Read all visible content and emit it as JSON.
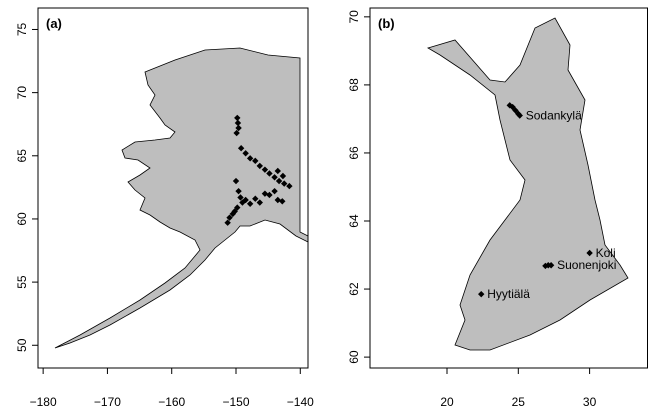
{
  "chart_data": [
    {
      "type": "scatter",
      "title": "(a)",
      "xlim": [
        -180.8,
        -138.8
      ],
      "ylim": [
        48.2,
        76.7
      ],
      "xticks": [
        {
          "value": -180,
          "label": "−180"
        },
        {
          "value": -170,
          "label": "−170"
        },
        {
          "value": -160,
          "label": "−160"
        },
        {
          "value": -150,
          "label": "−150"
        },
        {
          "value": -140,
          "label": "−140"
        }
      ],
      "yticks": [
        50,
        55,
        60,
        65,
        70,
        75
      ],
      "series": [
        {
          "color": "#000000",
          "x": [
            -149.8,
            -149.7,
            -149.6,
            -149.9,
            -149.2,
            -148.5,
            -147.8,
            -147,
            -146.3,
            -145.5,
            -144.8,
            -144,
            -143.3,
            -142.5,
            -141.7,
            -143.5,
            -142.7,
            -150,
            -149.6,
            -149.3,
            -149,
            -148.5,
            -147.8,
            -147,
            -146.3,
            -145.5,
            -144.8,
            -144,
            -143.5,
            -142.8,
            -149.8,
            -150.5,
            -151,
            -151.3,
            -150.2
          ],
          "values": [
            68.0,
            67.6,
            67.2,
            66.8,
            65.6,
            65.2,
            64.8,
            64.6,
            64.2,
            63.9,
            63.6,
            63.3,
            63,
            62.8,
            62.6,
            63.8,
            63.4,
            63,
            62.2,
            61.7,
            61.3,
            61.5,
            61.2,
            61.6,
            61.3,
            62,
            61.9,
            62.2,
            61.5,
            61.4,
            60.9,
            60.4,
            60.1,
            59.7,
            60.6
          ]
        }
      ]
    },
    {
      "type": "scatter",
      "title": "(b)",
      "xlim": [
        14.6,
        34.06
      ],
      "ylim": [
        59.68,
        70.26
      ],
      "xticks": [
        20,
        25,
        30
      ],
      "yticks": [
        60,
        62,
        64,
        66,
        68,
        70
      ],
      "series": [
        {
          "name": "Sodankylä",
          "color": "#000000",
          "x": [
            24.4,
            24.6,
            24.8,
            25.0,
            25.1
          ],
          "values": [
            67.4,
            67.35,
            67.25,
            67.15,
            67.1
          ]
        },
        {
          "name": "Koli",
          "color": "#000000",
          "x": [
            30.0
          ],
          "values": [
            63.06
          ]
        },
        {
          "name": "Suonenjoki",
          "color": "#000000",
          "x": [
            26.9,
            27.1,
            27.3
          ],
          "values": [
            62.68,
            62.7,
            62.7
          ]
        },
        {
          "name": "Hyytiälä",
          "color": "#000000",
          "x": [
            22.4
          ],
          "values": [
            61.85
          ]
        }
      ]
    }
  ]
}
